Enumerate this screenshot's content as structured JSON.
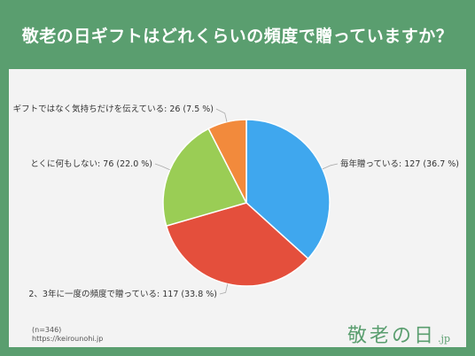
{
  "title": "敬老の日ギフトはどれくらいの頻度で贈っていますか？",
  "footnote": {
    "sample": "(n=346)",
    "url": "https://keirounohi.jp"
  },
  "logo": {
    "text": "敬老の日",
    "suffix": ".jp"
  },
  "chart_data": {
    "type": "pie",
    "title": "敬老の日ギフトはどれくらいの頻度で贈っていますか？",
    "slices": [
      {
        "label": "毎年贈っている",
        "value": 127,
        "percent": 36.7,
        "color": "#3fa7ee",
        "text": "毎年贈っている: 127 (36.7 %)"
      },
      {
        "label": "2、3年に一度の頻度で贈っている",
        "value": 117,
        "percent": 33.8,
        "color": "#e44f3c",
        "text": "2、3年に一度の頻度で贈っている: 117 (33.8 %)"
      },
      {
        "label": "とくに何もしない",
        "value": 76,
        "percent": 22.0,
        "color": "#9acd55",
        "text": "とくに何もしない: 76 (22.0 %)"
      },
      {
        "label": "ギフトではなく気持ちだけを伝えている",
        "value": 26,
        "percent": 7.5,
        "color": "#f28a3c",
        "text": "ギフトではなく気持ちだけを伝えている: 26 (7.5 %)"
      }
    ]
  }
}
